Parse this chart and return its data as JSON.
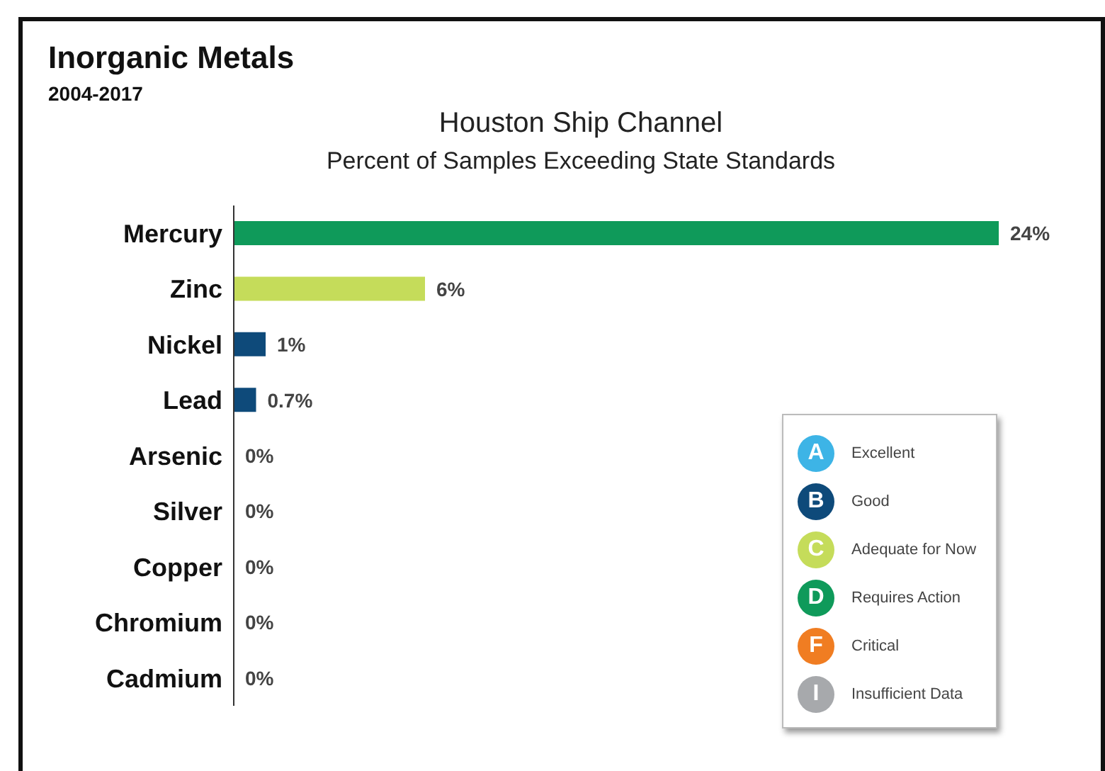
{
  "chart_data": {
    "type": "bar",
    "orientation": "horizontal",
    "stacked": true,
    "title": "Inorganic Metals",
    "subtitle": "2004-2017",
    "annotations": [
      "Houston Ship Channel",
      "Percent of Samples Exceeding State Standards",
      "A",
      "B",
      "C",
      "D",
      "F",
      "I"
    ],
    "categories": [
      "Mercury",
      "Zinc",
      "Nickel",
      "Lead",
      "Arsenic",
      "Silver",
      "Copper",
      "Chromium",
      "Cadmium"
    ],
    "legend": "bottom right",
    "series": [
      {
        "name": "Excellent",
        "color": "#3db4e6",
        "values": [
          null,
          null,
          null,
          null,
          0,
          0,
          0,
          0,
          0
        ],
        "value_labels": [
          null,
          null,
          null,
          null,
          "0%",
          "0%",
          "0%",
          "0%",
          "0%"
        ]
      },
      {
        "name": "Good",
        "color": "#0e4a7a",
        "values": [
          null,
          null,
          1,
          0.7,
          null,
          null,
          null,
          null,
          null
        ],
        "value_labels": [
          null,
          null,
          "1%",
          "0.7%",
          null,
          null,
          null,
          null,
          null
        ]
      },
      {
        "name": "Adequate for Now",
        "color": "#c5dc5a",
        "values": [
          null,
          6,
          null,
          null,
          null,
          null,
          null,
          null,
          null
        ],
        "value_labels": [
          null,
          "6%",
          null,
          null,
          null,
          null,
          null,
          null,
          null
        ]
      },
      {
        "name": "Requires Action",
        "color": "#0f9a5a",
        "values": [
          24,
          null,
          null,
          null,
          null,
          null,
          null,
          null,
          null
        ],
        "value_labels": [
          "24%",
          null,
          null,
          null,
          null,
          null,
          null,
          null,
          null
        ]
      },
      {
        "name": "Critical",
        "color": "#f07d22",
        "values": [
          null,
          null,
          null,
          null,
          null,
          null,
          null,
          null,
          null
        ],
        "value_labels": [
          null,
          null,
          null,
          null,
          null,
          null,
          null,
          null,
          null
        ]
      },
      {
        "name": "Insufficient Data",
        "color": "#a7a9ac",
        "values": [
          null,
          null,
          null,
          null,
          null,
          null,
          null,
          null,
          null
        ],
        "value_labels": [
          null,
          null,
          null,
          null,
          null,
          null,
          null,
          null,
          null
        ]
      }
    ]
  }
}
